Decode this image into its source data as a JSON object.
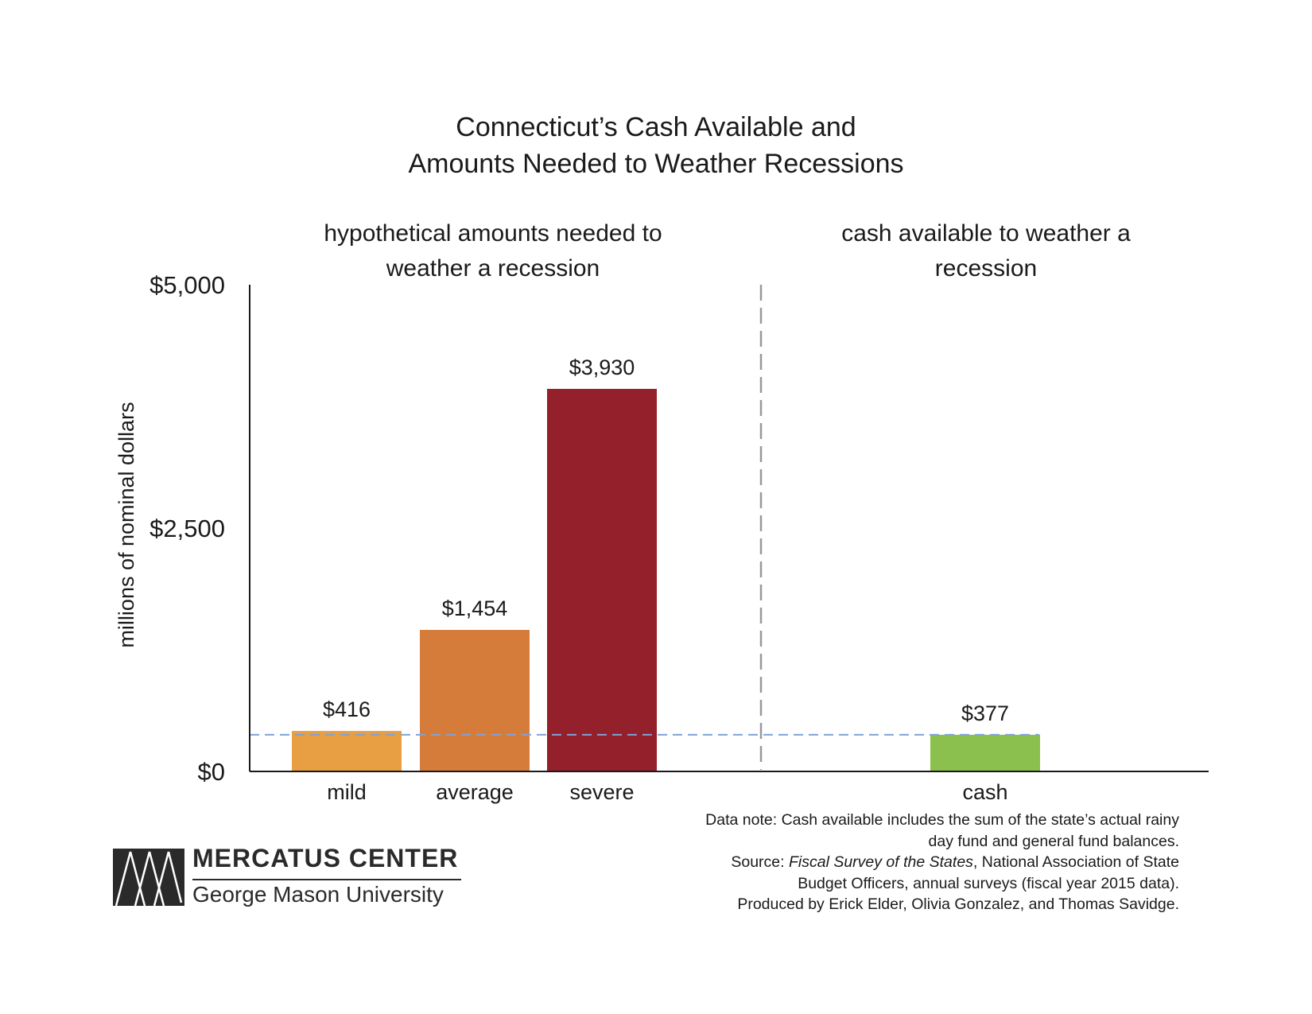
{
  "chart_data": {
    "type": "bar",
    "title": "Connecticut’s Cash Available and Amounts Needed to Weather Recessions",
    "title_lines": [
      "Connecticut’s Cash Available and",
      "Amounts Needed to Weather Recessions"
    ],
    "ylabel": "millions of nominal dollars",
    "ylim": [
      0,
      5000
    ],
    "yticks": [
      {
        "value": 0,
        "label": "$0"
      },
      {
        "value": 2500,
        "label": "$2,500"
      },
      {
        "value": 5000,
        "label": "$5,000"
      }
    ],
    "groups": [
      {
        "label_lines": [
          "hypothetical amounts needed to",
          "weather a recession"
        ]
      },
      {
        "label_lines": [
          "cash available to weather a",
          "recession"
        ]
      }
    ],
    "categories": [
      "mild",
      "average",
      "severe",
      "cash"
    ],
    "values": [
      416,
      1454,
      3930,
      377
    ],
    "value_labels": [
      "$416",
      "$1,454",
      "$3,930",
      "$377"
    ],
    "bar_colors": [
      "#E89E43",
      "#D67C3A",
      "#93202A",
      "#8BBF4E"
    ],
    "reference_line": {
      "value": 377,
      "color": "#7FA3D8"
    },
    "divider_color": "#999999",
    "grid": false
  },
  "footnote": {
    "lines": [
      {
        "pre": "Data note: Cash available includes the sum of the state’s actual rainy",
        "italic": "",
        "post": ""
      },
      {
        "pre": "day fund and general fund balances.",
        "italic": "",
        "post": ""
      },
      {
        "pre": "Source: ",
        "italic": "Fiscal Survey of the States",
        "post": ", National Association of State"
      },
      {
        "pre": "Budget Officers, annual surveys (fiscal year 2015 data).",
        "italic": "",
        "post": ""
      },
      {
        "pre": "Produced by Erick Elder, Olivia Gonzalez, and Thomas Savidge.",
        "italic": "",
        "post": ""
      }
    ]
  },
  "logo": {
    "name": "MERCATUS CENTER",
    "subtitle": "George Mason University"
  }
}
